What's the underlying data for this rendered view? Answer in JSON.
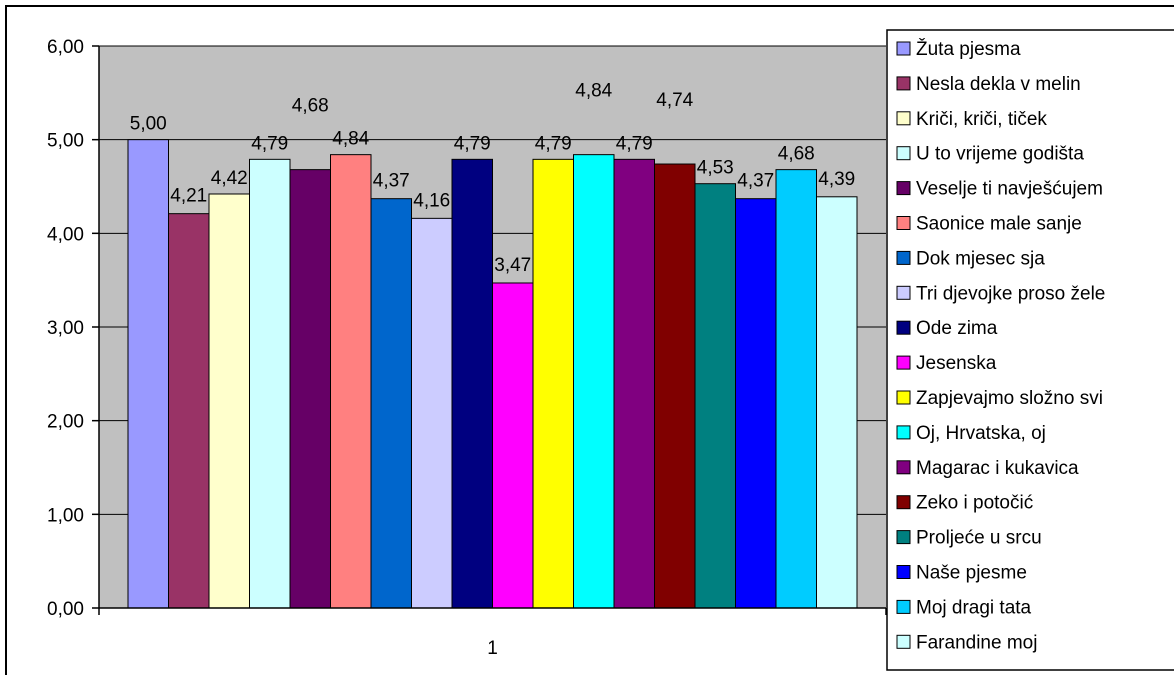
{
  "chart_data": {
    "type": "bar",
    "title": "",
    "xlabel": "",
    "ylabel": "",
    "categories": [
      "1"
    ],
    "ylim": [
      0,
      6
    ],
    "yticks": [
      "0,00",
      "1,00",
      "2,00",
      "3,00",
      "4,00",
      "5,00",
      "6,00"
    ],
    "grid": true,
    "legend_position": "right",
    "plot_background": "#c0c0c0",
    "series": [
      {
        "name": "Žuta pjesma",
        "value": 5.0,
        "label": "5,00",
        "color": "#9999ff"
      },
      {
        "name": "Nesla dekla v melin",
        "value": 4.21,
        "label": "4,21",
        "color": "#993366"
      },
      {
        "name": "Kriči, kriči, tiček",
        "value": 4.42,
        "label": "4,42",
        "color": "#ffffcc"
      },
      {
        "name": "U to vrijeme godišta",
        "value": 4.79,
        "label": "4,79",
        "color": "#ccffff"
      },
      {
        "name": "Veselje ti navješćujem",
        "value": 4.68,
        "label": "4,68",
        "color": "#660066"
      },
      {
        "name": "Saonice male sanje",
        "value": 4.84,
        "label": "4,84",
        "color": "#ff8080"
      },
      {
        "name": "Dok mjesec sja",
        "value": 4.37,
        "label": "4,37",
        "color": "#0066cc"
      },
      {
        "name": "Tri djevojke proso žele",
        "value": 4.16,
        "label": "4,16",
        "color": "#ccccff"
      },
      {
        "name": "Ode zima",
        "value": 4.79,
        "label": "4,79",
        "color": "#000080"
      },
      {
        "name": "Jesenska",
        "value": 3.47,
        "label": "3,47",
        "color": "#ff00ff"
      },
      {
        "name": "Zapjevajmo složno svi",
        "value": 4.79,
        "label": "4,79",
        "color": "#ffff00"
      },
      {
        "name": "Oj, Hrvatska, oj",
        "value": 4.84,
        "label": "4,84",
        "color": "#00ffff"
      },
      {
        "name": "Magarac i kukavica",
        "value": 4.79,
        "label": "4,79",
        "color": "#800080"
      },
      {
        "name": "Zeko i potočić",
        "value": 4.74,
        "label": "4,74",
        "color": "#800000"
      },
      {
        "name": "Proljeće u srcu",
        "value": 4.53,
        "label": "4,53",
        "color": "#008080"
      },
      {
        "name": "Naše pjesme",
        "value": 4.37,
        "label": "4,37",
        "color": "#0000ff"
      },
      {
        "name": "Moj dragi tata",
        "value": 4.68,
        "label": "4,68",
        "color": "#00ccff"
      },
      {
        "name": "Farandine moj",
        "value": 4.39,
        "label": "4,39",
        "color": "#ccffff"
      }
    ]
  }
}
